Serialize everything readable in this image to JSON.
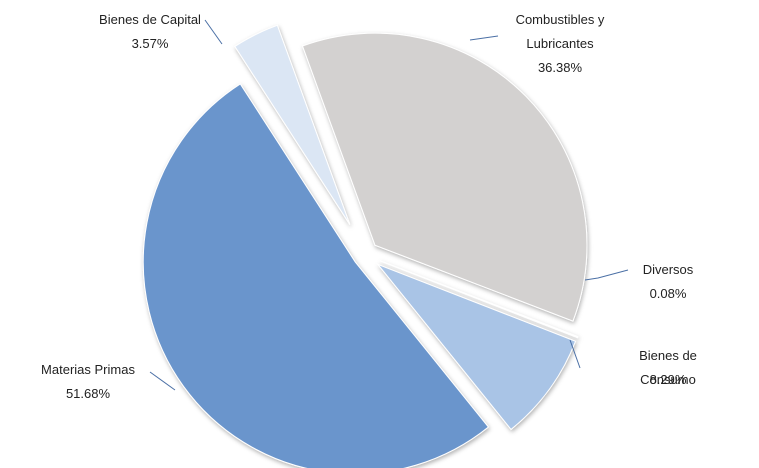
{
  "chart_data": {
    "type": "pie",
    "categories": [
      "Combustibles y Lubricantes",
      "Diversos",
      "Bienes de Consumo",
      "Materias Primas",
      "Bienes de Capital"
    ],
    "values": [
      36.38,
      0.08,
      8.29,
      51.68,
      3.57
    ],
    "value_labels": [
      "36.38%",
      "0.08%",
      "8.29%",
      "51.68%",
      "3.57%"
    ],
    "colors": [
      "#d3d1d0",
      "#c9daf0",
      "#a9c4e6",
      "#6a95cc",
      "#dbe6f4"
    ]
  }
}
